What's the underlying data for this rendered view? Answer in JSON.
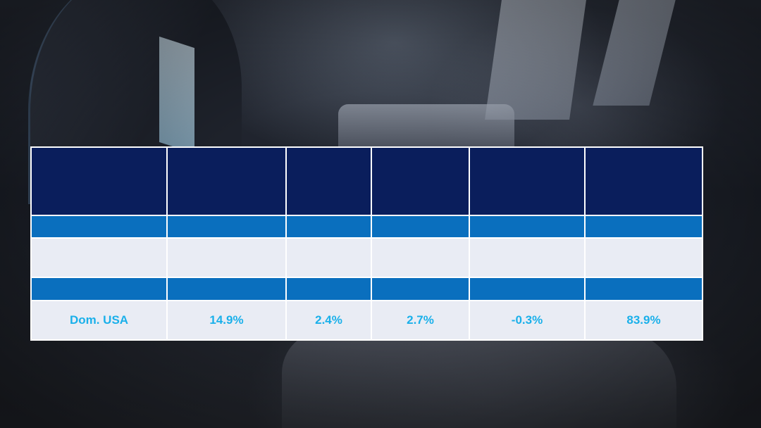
{
  "table": {
    "header": [
      "",
      "",
      "",
      "",
      "",
      ""
    ],
    "band_row_1": [
      "",
      "",
      "",
      "",
      "",
      ""
    ],
    "light_row": [
      "",
      "",
      "",
      "",
      "",
      ""
    ],
    "band_row_2": [
      "",
      "",
      "",
      "",
      "",
      ""
    ],
    "data_row": [
      "Dom. USA",
      "14.9%",
      "2.4%",
      "2.7%",
      "-0.3%",
      "83.9%"
    ]
  },
  "colors": {
    "header_bg": "#0a1e5c",
    "band_bg": "#0a6fbe",
    "light_bg": "#e9ecf4",
    "value_text": "#1ab0ea"
  }
}
